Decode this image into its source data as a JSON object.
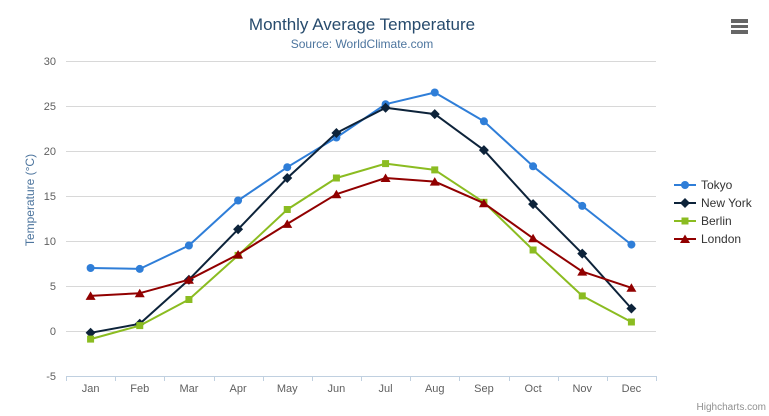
{
  "chart_data": {
    "type": "line",
    "title": "Monthly Average Temperature",
    "subtitle": "Source: WorldClimate.com",
    "ylabel": "Temperature (°C)",
    "xlabel": "",
    "ylim": [
      -5,
      30
    ],
    "ytick_step": 5,
    "grid": true,
    "legend_position": "right",
    "categories": [
      "Jan",
      "Feb",
      "Mar",
      "Apr",
      "May",
      "Jun",
      "Jul",
      "Aug",
      "Sep",
      "Oct",
      "Nov",
      "Dec"
    ],
    "series": [
      {
        "name": "Tokyo",
        "color": "#2f7ed8",
        "marker": "circle",
        "values": [
          7.0,
          6.9,
          9.5,
          14.5,
          18.2,
          21.5,
          25.2,
          26.5,
          23.3,
          18.3,
          13.9,
          9.6
        ]
      },
      {
        "name": "New York",
        "color": "#0d233a",
        "marker": "diamond",
        "values": [
          -0.2,
          0.8,
          5.7,
          11.3,
          17.0,
          22.0,
          24.8,
          24.1,
          20.1,
          14.1,
          8.6,
          2.5
        ]
      },
      {
        "name": "Berlin",
        "color": "#8bbc21",
        "marker": "square",
        "values": [
          -0.9,
          0.6,
          3.5,
          8.4,
          13.5,
          17.0,
          18.6,
          17.9,
          14.3,
          9.0,
          3.9,
          1.0
        ]
      },
      {
        "name": "London",
        "color": "#910000",
        "marker": "triangle",
        "values": [
          3.9,
          4.2,
          5.7,
          8.5,
          11.9,
          15.2,
          17.0,
          16.6,
          14.2,
          10.3,
          6.6,
          4.8
        ]
      }
    ],
    "credits": "Highcharts.com"
  },
  "export_menu": {
    "icon": "hamburger-menu-icon"
  },
  "theme": {
    "grid_color": "#d8d8d8",
    "axis_color": "#c0d0e0",
    "axis_label_color": "#606060",
    "title_color": "#274b6d",
    "subtitle_color": "#4d759e",
    "legend_text_color": "#333333"
  }
}
